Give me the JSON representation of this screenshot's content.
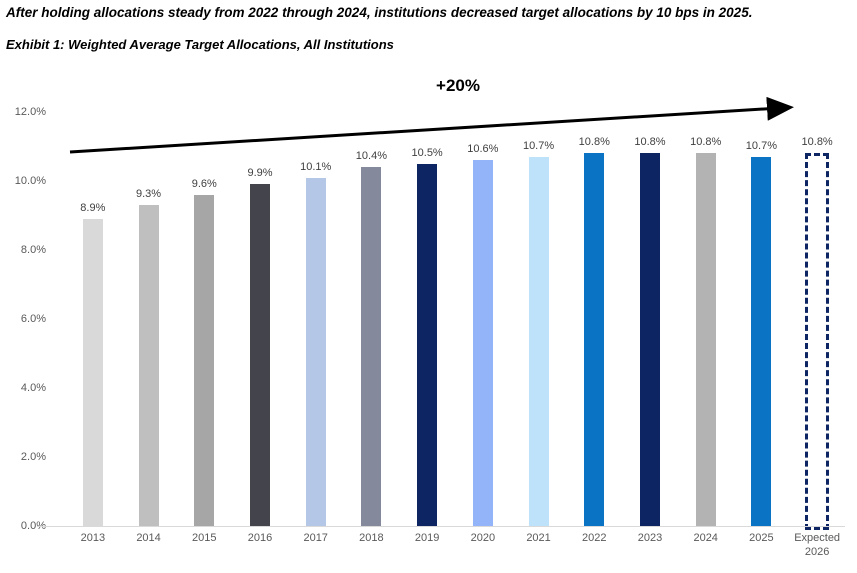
{
  "header": {
    "headline": "After holding allocations steady from 2022 through 2024, institutions decreased target allocations by 10 bps in 2025.",
    "exhibit_title": "Exhibit 1: Weighted Average Target Allocations, All Institutions"
  },
  "chart_data": {
    "type": "bar",
    "title": "Exhibit 1: Weighted Average Target Allocations, All Institutions",
    "categories": [
      "2013",
      "2014",
      "2015",
      "2016",
      "2017",
      "2018",
      "2019",
      "2020",
      "2021",
      "2022",
      "2023",
      "2024",
      "2025",
      "Expected 2026"
    ],
    "values": [
      8.9,
      9.3,
      9.6,
      9.9,
      10.1,
      10.4,
      10.5,
      10.6,
      10.7,
      10.8,
      10.8,
      10.8,
      10.7,
      10.8
    ],
    "labels": [
      "8.9%",
      "9.3%",
      "9.6%",
      "9.9%",
      "10.1%",
      "10.4%",
      "10.5%",
      "10.6%",
      "10.7%",
      "10.8%",
      "10.8%",
      "10.8%",
      "10.7%",
      "10.8%"
    ],
    "bar_colors": [
      "#d9d9d9",
      "#bfbfbf",
      "#a6a6a6",
      "#44444c",
      "#b4c7e7",
      "#848a9b",
      "#0d2562",
      "#94b4f9",
      "#bfe2fb",
      "#0a73c4",
      "#0d2562",
      "#b3b3b3",
      "#0a73c4",
      "#ffffff"
    ],
    "bar_styles": [
      "solid",
      "solid",
      "solid",
      "solid",
      "solid",
      "solid",
      "solid",
      "solid",
      "solid",
      "solid",
      "solid",
      "solid",
      "solid",
      "dashed-outline"
    ],
    "xlabel": "",
    "ylabel": "",
    "ylim": [
      0,
      12
    ],
    "y_ticks": [
      "0.0%",
      "2.0%",
      "4.0%",
      "6.0%",
      "8.0%",
      "10.0%",
      "12.0%"
    ],
    "grid": false,
    "legend": null,
    "annotation": {
      "text": "+20%",
      "type": "trend-arrow",
      "arrow_color": "#000000",
      "dashed_outline_color": "#0d2562"
    },
    "axis_color": "#d9d9d9",
    "tick_color": "#595959",
    "data_label_color": "#404040"
  }
}
